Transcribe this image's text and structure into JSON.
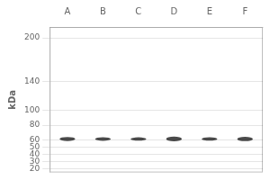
{
  "chart_data": {
    "type": "band",
    "ylabel": "kDa",
    "categories": [
      "A",
      "B",
      "C",
      "D",
      "E",
      "F"
    ],
    "values": [
      61,
      61,
      61,
      61,
      61,
      61
    ],
    "heights": [
      5.5,
      5.0,
      4.5,
      6.5,
      4.8,
      6.0
    ],
    "color": "#2a2a2a",
    "ylim": [
      15,
      215
    ],
    "yticks": [
      200,
      140,
      100,
      80,
      60,
      50,
      40,
      30,
      20
    ],
    "grid": true
  }
}
